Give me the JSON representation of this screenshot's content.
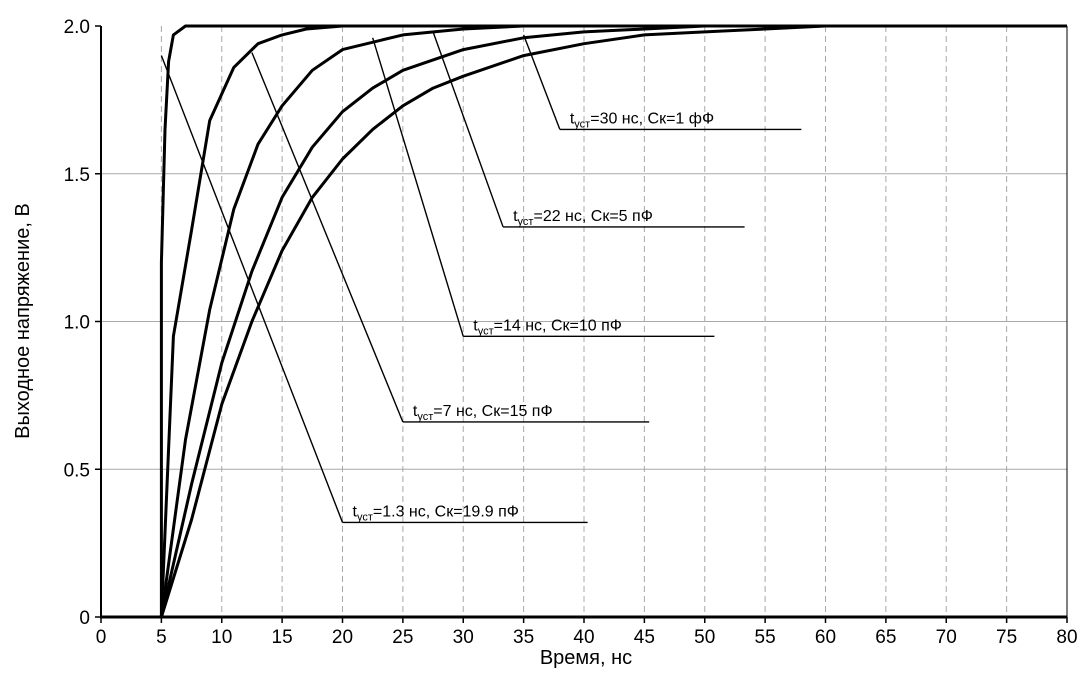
{
  "chart_data": {
    "type": "line",
    "title": "",
    "xlabel": "Время, нс",
    "ylabel": "Выходное напряжение, В",
    "xlim": [
      0,
      80
    ],
    "ylim": [
      0,
      2.0
    ],
    "x_ticks": [
      "0",
      "5",
      "10",
      "15",
      "20",
      "25",
      "30",
      "35",
      "40",
      "45",
      "50",
      "55",
      "60",
      "65",
      "70",
      "75",
      "80"
    ],
    "y_ticks": [
      "0",
      "0.5",
      "1.0",
      "1.5",
      "2.0"
    ],
    "grid": {
      "x": "dashed",
      "y": "solid"
    },
    "series": [
      {
        "x": [
          0,
          5,
          5,
          5.3,
          5.6,
          6,
          7,
          80
        ],
        "y": [
          0,
          0,
          1.2,
          1.65,
          1.88,
          1.97,
          2.0,
          2.0
        ]
      },
      {
        "x": [
          0,
          5,
          6,
          7.5,
          9,
          11,
          13,
          15,
          17,
          20,
          25,
          30,
          80
        ],
        "y": [
          0,
          0,
          0.95,
          1.31,
          1.68,
          1.86,
          1.94,
          1.97,
          1.99,
          2.0,
          2.0,
          2.0,
          2.0
        ]
      },
      {
        "x": [
          0,
          5,
          7,
          9,
          11,
          13,
          15,
          17.5,
          20,
          25,
          30,
          35,
          40,
          45,
          50,
          80
        ],
        "y": [
          0,
          0,
          0.6,
          1.04,
          1.38,
          1.6,
          1.73,
          1.85,
          1.92,
          1.97,
          1.99,
          2.0,
          2.0,
          2.0,
          2.0,
          2.0
        ]
      },
      {
        "x": [
          0,
          5,
          7.5,
          10,
          12.5,
          15,
          17.5,
          20,
          22.5,
          25,
          30,
          35,
          40,
          45,
          50,
          55,
          60,
          80
        ],
        "y": [
          0,
          0,
          0.45,
          0.86,
          1.17,
          1.42,
          1.59,
          1.71,
          1.79,
          1.85,
          1.92,
          1.96,
          1.98,
          1.99,
          2.0,
          2.0,
          2.0,
          2.0
        ]
      },
      {
        "x": [
          0,
          5,
          7.5,
          10,
          12.5,
          15,
          17.5,
          20,
          22.5,
          25,
          27.5,
          30,
          35,
          40,
          45,
          50,
          55,
          60,
          65,
          80
        ],
        "y": [
          0,
          0,
          0.33,
          0.72,
          1.0,
          1.24,
          1.42,
          1.55,
          1.65,
          1.73,
          1.79,
          1.83,
          1.9,
          1.94,
          1.97,
          1.98,
          1.99,
          2.0,
          2.0,
          2.0
        ]
      }
    ],
    "annotations": [
      {
        "label": "t",
        "sub": "уст",
        "text": "=30 нс, Cк=1 фФ",
        "label_x": 38,
        "label_y": 1.65,
        "line_end_x": 58,
        "pointer_x": 35,
        "pointer_y": 1.97
      },
      {
        "label": "t",
        "sub": "уст",
        "text": "=22 нс, Cк=5 пФ",
        "label_x": 33.3,
        "label_y": 1.32,
        "line_end_x": 53.3,
        "pointer_x": 27.5,
        "pointer_y": 1.98
      },
      {
        "label": "t",
        "sub": "уст",
        "text": "=14 нс, Cк=10 пФ",
        "label_x": 30,
        "label_y": 0.95,
        "line_end_x": 50.8,
        "pointer_x": 22.5,
        "pointer_y": 1.96
      },
      {
        "label": "t",
        "sub": "уст",
        "text": "=7 нс, Cк=15 пФ",
        "label_x": 25,
        "label_y": 0.66,
        "line_end_x": 45.4,
        "pointer_x": 12.5,
        "pointer_y": 1.91
      },
      {
        "label": "t",
        "sub": "уст",
        "text": "=1.3 нс, Cк=19.9 пФ",
        "label_x": 20,
        "label_y": 0.32,
        "line_end_x": 40.3,
        "pointer_x": 5,
        "pointer_y": 1.9
      }
    ]
  }
}
